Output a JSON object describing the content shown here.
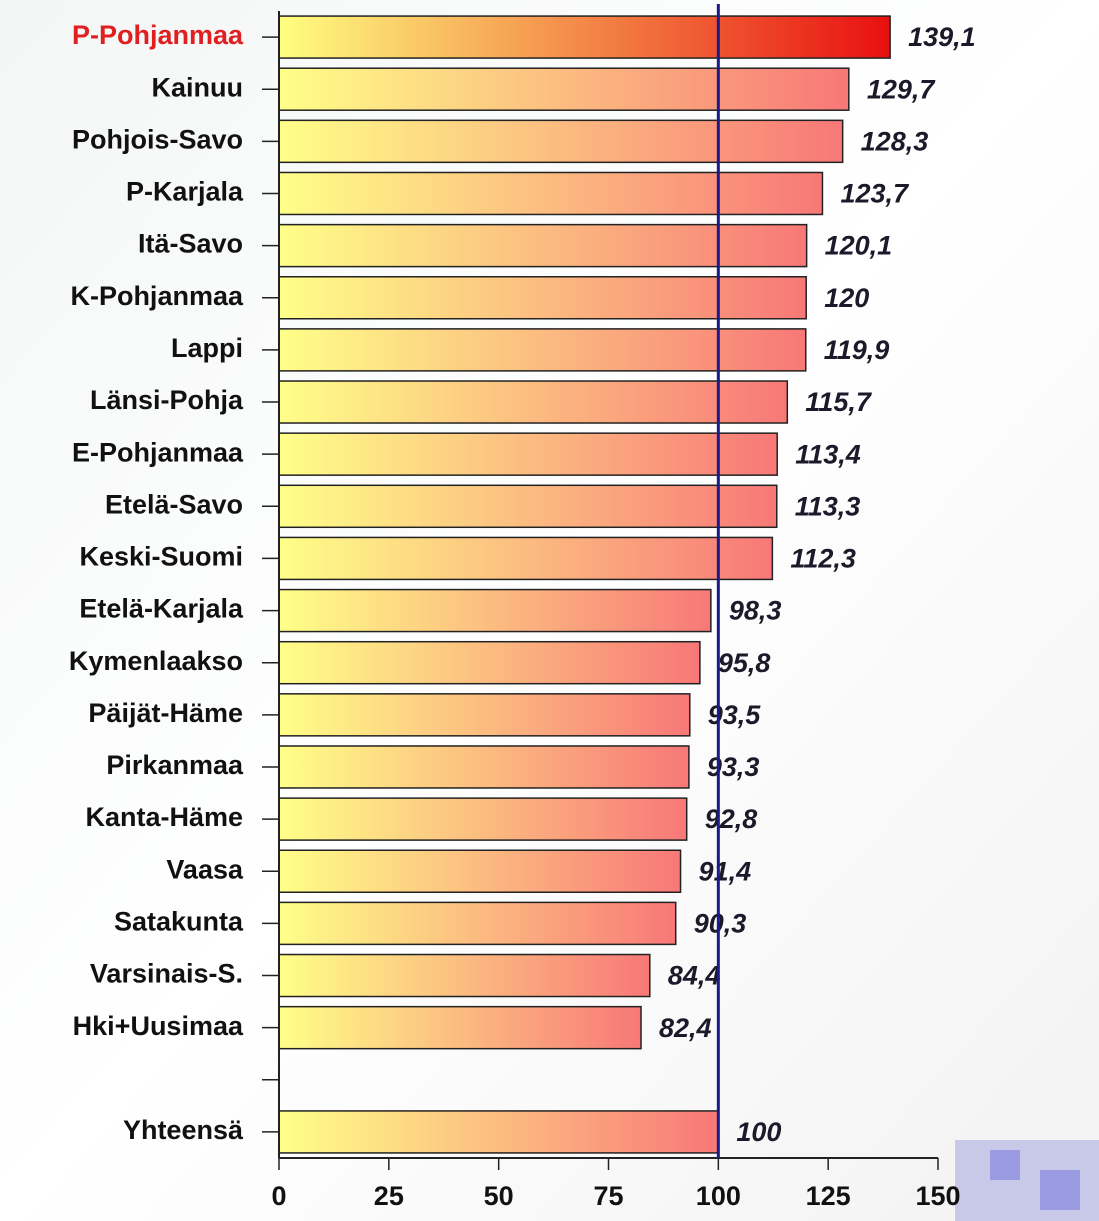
{
  "chart_data": {
    "type": "barh",
    "categories": [
      "P-Pohjanmaa",
      "Kainuu",
      "Pohjois-Savo",
      "P-Karjala",
      "Itä-Savo",
      "K-Pohjanmaa",
      "Lappi",
      "Länsi-Pohja",
      "E-Pohjanmaa",
      "Etelä-Savo",
      "Keski-Suomi",
      "Etelä-Karjala",
      "Kymenlaakso",
      "Päijät-Häme",
      "Pirkanmaa",
      "Kanta-Häme",
      "Vaasa",
      "Satakunta",
      "Varsinais-S.",
      "Hki+Uusimaa",
      null,
      "Yhteensä"
    ],
    "values": [
      139.1,
      129.7,
      128.3,
      123.7,
      120.1,
      120,
      119.9,
      115.7,
      113.4,
      113.3,
      112.3,
      98.3,
      95.8,
      93.5,
      93.3,
      92.8,
      91.4,
      90.3,
      84.4,
      82.4,
      null,
      100
    ],
    "value_labels": [
      "139,1",
      "129,7",
      "128,3",
      "123,7",
      "120,1",
      "120",
      "119,9",
      "115,7",
      "113,4",
      "113,3",
      "112,3",
      "98,3",
      "95,8",
      "93,5",
      "93,3",
      "92,8",
      "91,4",
      "90,3",
      "84,4",
      "82,4",
      null,
      "100"
    ],
    "color": [
      "#ffff88",
      "#f87878"
    ],
    "highlight": {
      "index": 0,
      "color": [
        "#ffff80",
        "#e81010"
      ],
      "label_color": "#e02020"
    },
    "reference_line": {
      "value": 100,
      "color": "#1a1a8c"
    },
    "xlim": [
      0,
      150
    ],
    "xticks": [
      0,
      25,
      50,
      75,
      100,
      125,
      150
    ]
  }
}
